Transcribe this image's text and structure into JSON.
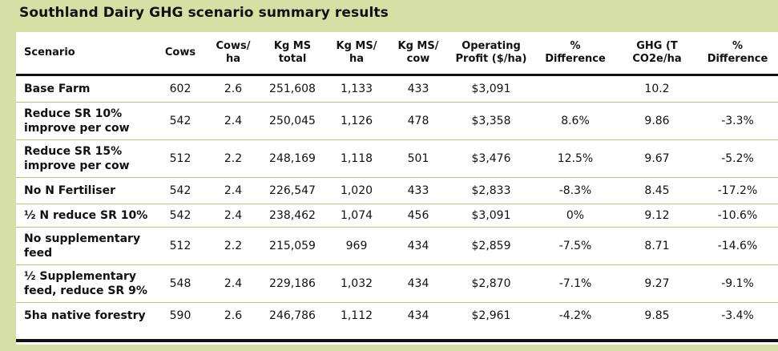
{
  "title": "Southland Dairy GHG scenario summary results",
  "headers": {
    "scenario": "Scenario",
    "cows": "Cows",
    "cows_ha_1": "Cows/",
    "cows_ha_2": "ha",
    "kgms_total_1": "Kg MS",
    "kgms_total_2": "total",
    "kgms_ha_1": "Kg MS/",
    "kgms_ha_2": "ha",
    "kgms_cow_1": "Kg MS/",
    "kgms_cow_2": "cow",
    "op_1": "Operating",
    "op_2": "Profit ($/ha)",
    "pct1_1": "%",
    "pct1_2": "Difference",
    "ghg_1": "GHG (T",
    "ghg_2": "CO2e/ha",
    "pct2_1": "%",
    "pct2_2": "Difference"
  },
  "rows": [
    {
      "line1": "Base Farm",
      "line2": "",
      "cows": "602",
      "cows_ha": "2.6",
      "kgms_total": "251,608",
      "kgms_ha": "1,133",
      "kgms_cow": "433",
      "profit": "$3,091",
      "pct_diff": "",
      "ghg": "10.2",
      "ghg_diff": ""
    },
    {
      "line1": "Reduce SR 10%",
      "line2": "improve per cow",
      "cows": "542",
      "cows_ha": "2.4",
      "kgms_total": "250,045",
      "kgms_ha": "1,126",
      "kgms_cow": "478",
      "profit": "$3,358",
      "pct_diff": "8.6%",
      "ghg": "9.86",
      "ghg_diff": "-3.3%"
    },
    {
      "line1": "Reduce SR 15%",
      "line2": "improve per cow",
      "cows": "512",
      "cows_ha": "2.2",
      "kgms_total": "248,169",
      "kgms_ha": "1,118",
      "kgms_cow": "501",
      "profit": "$3,476",
      "pct_diff": "12.5%",
      "ghg": "9.67",
      "ghg_diff": "-5.2%"
    },
    {
      "line1": "No N Fertiliser",
      "line2": "",
      "cows": "542",
      "cows_ha": "2.4",
      "kgms_total": "226,547",
      "kgms_ha": "1,020",
      "kgms_cow": "433",
      "profit": "$2,833",
      "pct_diff": "-8.3%",
      "ghg": "8.45",
      "ghg_diff": "-17.2%"
    },
    {
      "line1": "½ N reduce SR 10%",
      "line2": "",
      "cows": "542",
      "cows_ha": "2.4",
      "kgms_total": "238,462",
      "kgms_ha": "1,074",
      "kgms_cow": "456",
      "profit": "$3,091",
      "pct_diff": "0%",
      "ghg": "9.12",
      "ghg_diff": "-10.6%"
    },
    {
      "line1": "No supplementary",
      "line2": "feed",
      "cows": "512",
      "cows_ha": "2.2",
      "kgms_total": "215,059",
      "kgms_ha": "969",
      "kgms_cow": "434",
      "profit": "$2,859",
      "pct_diff": "-7.5%",
      "ghg": "8.71",
      "ghg_diff": "-14.6%"
    },
    {
      "line1": "½ Supplementary",
      "line2": "feed, reduce SR 9%",
      "cows": "548",
      "cows_ha": "2.4",
      "kgms_total": "229,186",
      "kgms_ha": "1,032",
      "kgms_cow": "434",
      "profit": "$2,870",
      "pct_diff": "-7.1%",
      "ghg": "9.27",
      "ghg_diff": "-9.1%"
    },
    {
      "line1": "5ha native forestry",
      "line2": "",
      "cows": "590",
      "cows_ha": "2.6",
      "kgms_total": "246,786",
      "kgms_ha": "1,112",
      "kgms_cow": "434",
      "profit": "$2,961",
      "pct_diff": "-4.2%",
      "ghg": "9.85",
      "ghg_diff": "-3.4%"
    }
  ],
  "colors": {
    "background": "#d6e0a4",
    "panel": "#ffffff",
    "rule": "#111111",
    "row_divider": "#b8c27a"
  }
}
